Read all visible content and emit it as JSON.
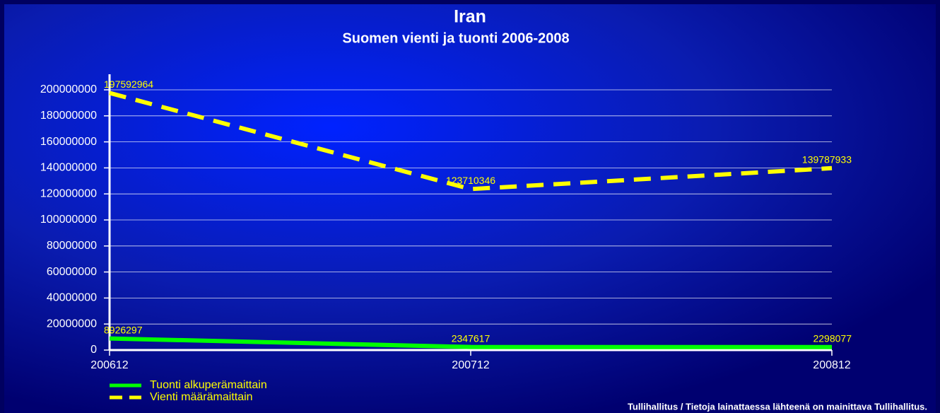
{
  "chart_data": {
    "type": "line",
    "title": "Iran",
    "subtitle": "Suomen vienti ja tuonti 2006-2008",
    "categories": [
      "200612",
      "200712",
      "200812"
    ],
    "series": [
      {
        "name": "Tuonti alkuperämaittain",
        "color": "#00ff00",
        "dashed": false,
        "values": [
          8926297,
          2347617,
          2298077
        ]
      },
      {
        "name": "Vienti määrämaittain",
        "color": "#ffff00",
        "dashed": true,
        "values": [
          197592964,
          123710346,
          139787933
        ]
      }
    ],
    "ylim": [
      0,
      200000000
    ],
    "yticks": [
      0,
      20000000,
      40000000,
      60000000,
      80000000,
      100000000,
      120000000,
      140000000,
      160000000,
      180000000,
      200000000
    ],
    "grid": true,
    "legend": "bottom-left",
    "footer": "Tullihallitus / Tietoja lainattaessa lähteenä on mainittava Tullihallitus."
  }
}
